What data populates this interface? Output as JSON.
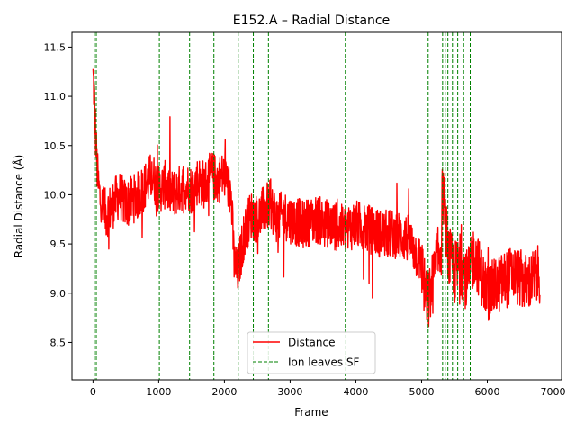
{
  "chart_data": {
    "type": "line",
    "title": "E152.A – Radial Distance",
    "xlabel": "Frame",
    "ylabel": "Radial Distance (Å)",
    "xlim": [
      -320,
      7130
    ],
    "ylim": [
      8.12,
      11.65
    ],
    "x_ticks": [
      0,
      1000,
      2000,
      3000,
      4000,
      5000,
      6000,
      7000
    ],
    "y_ticks": [
      8.5,
      9.0,
      9.5,
      10.0,
      10.5,
      11.0,
      11.5
    ],
    "x_tick_labels": [
      "0",
      "1000",
      "2000",
      "3000",
      "4000",
      "5000",
      "6000",
      "7000"
    ],
    "y_tick_labels": [
      "8.5",
      "9.0",
      "9.5",
      "10.0",
      "10.5",
      "11.0",
      "11.5"
    ],
    "grid": false,
    "legend_position": "lower-center",
    "series": [
      {
        "name": "Distance",
        "color": "#ff0000",
        "style": "solid",
        "x": [
          0,
          20,
          40,
          60,
          80,
          120,
          200,
          300,
          400,
          500,
          600,
          700,
          800,
          900,
          1000,
          1100,
          1200,
          1300,
          1400,
          1500,
          1600,
          1700,
          1800,
          1900,
          2000,
          2100,
          2150,
          2200,
          2300,
          2400,
          2500,
          2600,
          2700,
          2800,
          2900,
          3000,
          3200,
          3400,
          3600,
          3800,
          4000,
          4200,
          4400,
          4600,
          4800,
          5000,
          5050,
          5100,
          5200,
          5300,
          5320,
          5400,
          5500,
          5600,
          5700,
          5800,
          5900,
          6000,
          6200,
          6400,
          6600,
          6800
        ],
        "y": [
          11.2,
          11.0,
          10.6,
          10.3,
          10.1,
          9.9,
          9.8,
          9.9,
          10.0,
          9.9,
          9.95,
          10.0,
          10.1,
          10.2,
          10.05,
          10.1,
          10.0,
          10.05,
          10.1,
          10.05,
          10.15,
          10.1,
          10.2,
          10.15,
          10.2,
          10.0,
          9.3,
          9.2,
          9.6,
          9.8,
          9.75,
          9.85,
          9.9,
          9.75,
          9.8,
          9.75,
          9.7,
          9.75,
          9.7,
          9.65,
          9.7,
          9.65,
          9.6,
          9.6,
          9.55,
          9.3,
          9.0,
          8.9,
          9.2,
          9.5,
          10.1,
          9.4,
          9.2,
          9.3,
          9.1,
          9.4,
          9.2,
          9.0,
          9.1,
          9.2,
          9.1,
          9.2
        ]
      },
      {
        "name": "Ion leaves SF",
        "color": "#008000",
        "style": "dashed",
        "x_positions": [
          20,
          50,
          1010,
          1470,
          1840,
          2210,
          2440,
          2670,
          3840,
          5100,
          5320,
          5360,
          5400,
          5470,
          5550,
          5640,
          5740
        ]
      }
    ]
  }
}
